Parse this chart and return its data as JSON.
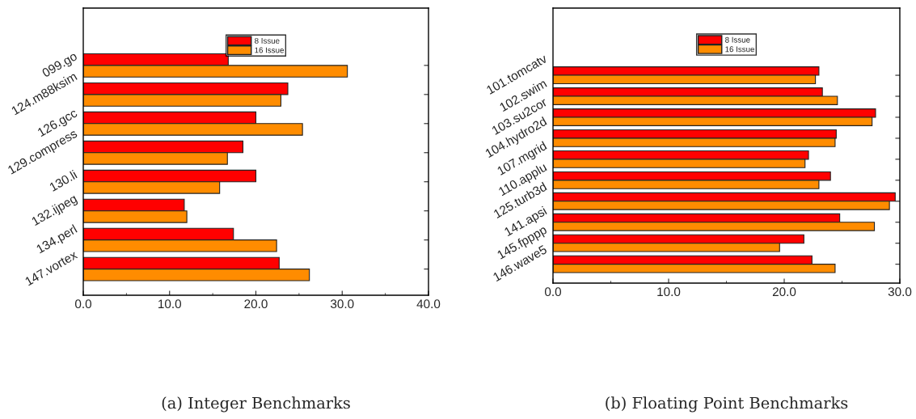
{
  "chart_data": [
    {
      "type": "bar",
      "orientation": "horizontal",
      "categories": [
        "099.go",
        "124.m88ksim",
        "126.gcc",
        "129.compress",
        "130.li",
        "132.ijpeg",
        "134.perl",
        "147.vortex"
      ],
      "series": [
        {
          "name": "8 Issue",
          "color": "#ff0000",
          "values": [
            16.8,
            23.7,
            20.0,
            18.5,
            20.0,
            11.7,
            17.4,
            22.7
          ]
        },
        {
          "name": "16 Issue",
          "color": "#ff8c00",
          "values": [
            30.6,
            22.9,
            25.4,
            16.7,
            15.8,
            12.0,
            22.4,
            26.2
          ]
        }
      ],
      "xlim": [
        0,
        40
      ],
      "xticks": [
        {
          "value": 0,
          "label": "0.0"
        },
        {
          "value": 10,
          "label": "10.0"
        },
        {
          "value": 20,
          "label": "20.0"
        },
        {
          "value": 30,
          "label": "30.0"
        },
        {
          "value": 40,
          "label": "40.0"
        }
      ],
      "legend": "top",
      "grid": false,
      "annotations": [
        "(a) Integer Benchmarks"
      ]
    },
    {
      "type": "bar",
      "orientation": "horizontal",
      "categories": [
        "101.tomcatv",
        "102.swim",
        "103.su2cor",
        "104.hydro2d",
        "107.mgrid",
        "110.applu",
        "125.turb3d",
        "141.apsi",
        "145.fpppp",
        "146.wave5"
      ],
      "series": [
        {
          "name": "8 Issue",
          "color": "#ff0000",
          "values": [
            23.0,
            23.3,
            27.9,
            24.5,
            22.1,
            24.0,
            29.6,
            24.8,
            21.7,
            22.4
          ]
        },
        {
          "name": "16 Issue",
          "color": "#ff8c00",
          "values": [
            22.7,
            24.6,
            27.6,
            24.4,
            21.8,
            23.0,
            29.1,
            27.8,
            19.6,
            24.4
          ]
        }
      ],
      "xlim": [
        0,
        30
      ],
      "xticks": [
        {
          "value": 0,
          "label": "0.0"
        },
        {
          "value": 10,
          "label": "10.0"
        },
        {
          "value": 20,
          "label": "20.0"
        },
        {
          "value": 30,
          "label": "30.0"
        }
      ],
      "legend": "top",
      "grid": false,
      "annotations": [
        "(b) Floating Point Benchmarks"
      ]
    }
  ]
}
